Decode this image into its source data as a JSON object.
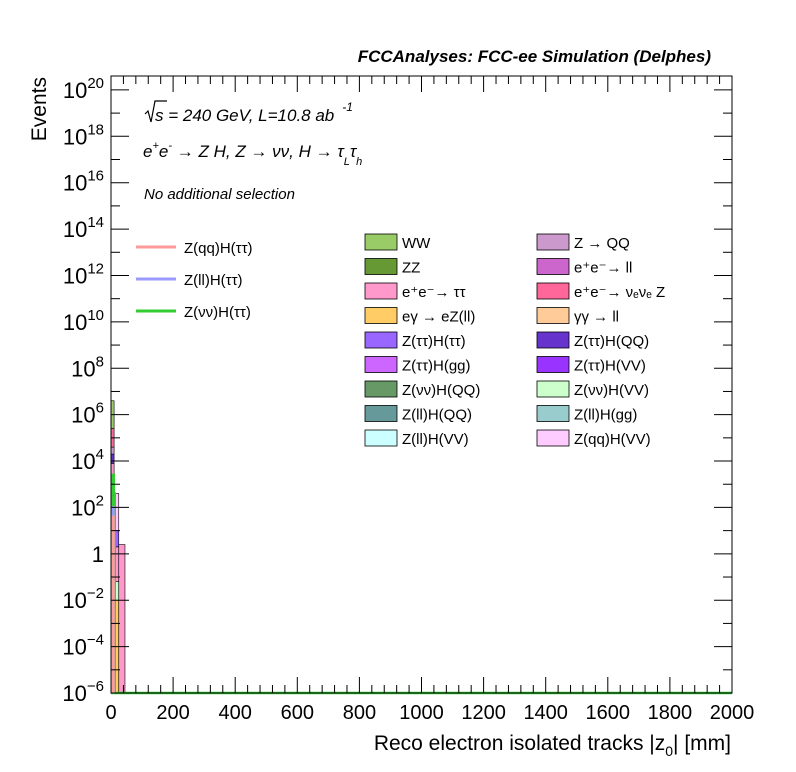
{
  "header": "FCCAnalyses: FCC-ee Simulation (Delphes)",
  "chart_data": {
    "type": "bar",
    "stacked": true,
    "log_y": true,
    "xlim": [
      0,
      2000
    ],
    "ylim_exp": [
      -6,
      20.6
    ],
    "grid": false,
    "legend_position": "top-right",
    "xlabel": "Reco electron isolated tracks |z",
    "xlabel_sub": "0",
    "xlabel_tail": "| [mm]",
    "ylabel": "Events",
    "x_ticks": [
      "0",
      "200",
      "400",
      "600",
      "800",
      "1000",
      "1200",
      "1400",
      "1600",
      "1800",
      "2000"
    ],
    "x_tick_values": [
      0,
      200,
      400,
      600,
      800,
      1000,
      1200,
      1400,
      1600,
      1800,
      2000
    ],
    "y_tick_exponents": [
      -6,
      -4,
      -2,
      0,
      2,
      4,
      6,
      8,
      10,
      12,
      14,
      16,
      18,
      20
    ],
    "y_tick_base": "10",
    "y_tick_one": "1",
    "annotations": {
      "energy_prefix": "s",
      "energy_rest": " = 240 GeV, L=10.8 ab",
      "energy_exp": "-1",
      "process": [
        "e",
        "+",
        "e",
        "-",
        " → Z H, Z  → νν, H  → τ",
        "L",
        "τ",
        "h"
      ],
      "selection": "No additional selection"
    },
    "signal_series": [
      {
        "name": "Z(qq)H(ττ)",
        "color": "#ff9a9a"
      },
      {
        "name": "Z(ll)H(ττ)",
        "color": "#9a9aff"
      },
      {
        "name": "Z(νν)H(ττ)",
        "color": "#33cc33"
      }
    ],
    "background_series": [
      {
        "name": "WW",
        "color": "#99cc66"
      },
      {
        "name": "Z → QQ",
        "color": "#cc99cc"
      },
      {
        "name": "ZZ",
        "color": "#669933"
      },
      {
        "name": "e⁺e⁻→ ll",
        "color": "#cc66cc"
      },
      {
        "name": "e⁺e⁻→ ττ",
        "color": "#ff99cc"
      },
      {
        "name": "e⁺e⁻→ νₑνₑ Z",
        "color": "#ff6699"
      },
      {
        "name": "eγ → eZ(ll)",
        "color": "#ffcc66"
      },
      {
        "name": "γγ → ll",
        "color": "#ffcc99"
      },
      {
        "name": "Z(ττ)H(ττ)",
        "color": "#9966ff"
      },
      {
        "name": "Z(ττ)H(QQ)",
        "color": "#6633cc"
      },
      {
        "name": "Z(ττ)H(gg)",
        "color": "#cc66ff"
      },
      {
        "name": "Z(ττ)H(VV)",
        "color": "#9933ff"
      },
      {
        "name": "Z(νν)H(QQ)",
        "color": "#669966"
      },
      {
        "name": "Z(νν)H(VV)",
        "color": "#ccffcc"
      },
      {
        "name": "Z(ll)H(QQ)",
        "color": "#669999"
      },
      {
        "name": "Z(ll)H(gg)",
        "color": "#99cccc"
      },
      {
        "name": "Z(ll)H(VV)",
        "color": "#ccffff"
      },
      {
        "name": "Z(qq)H(VV)",
        "color": "#ffccff"
      }
    ],
    "bins": [
      {
        "x0": 0,
        "x1": 10,
        "segments": [
          {
            "color": "#99cc66",
            "lo": -6,
            "hi": -0.3
          },
          {
            "color": "#ffcc66",
            "lo": -0.3,
            "hi": 0.5
          },
          {
            "color": "#ccffff",
            "lo": 0.5,
            "hi": 1.0
          },
          {
            "color": "#9966ff",
            "lo": 1.0,
            "hi": 1.5
          },
          {
            "color": "#669966",
            "lo": 1.5,
            "hi": 2.0
          },
          {
            "color": "#cc66ff",
            "lo": 2.0,
            "hi": 2.5
          },
          {
            "color": "#669933",
            "lo": 2.5,
            "hi": 3.3
          },
          {
            "color": "#ff99cc",
            "lo": 3.3,
            "hi": 3.9
          },
          {
            "color": "#6633cc",
            "lo": 3.9,
            "hi": 4.3
          },
          {
            "color": "#cc99cc",
            "lo": 4.3,
            "hi": 4.6
          },
          {
            "color": "#ff6699",
            "lo": 4.6,
            "hi": 5.4
          },
          {
            "color": "#99cc66",
            "lo": 5.4,
            "hi": 6.6
          }
        ]
      },
      {
        "x0": 10,
        "x1": 25,
        "segments": [
          {
            "color": "#ffcc66",
            "lo": -6,
            "hi": -2.0
          },
          {
            "color": "#ccffcc",
            "lo": -2.0,
            "hi": -1.2
          },
          {
            "color": "#ff99cc",
            "lo": -1.2,
            "hi": 0.3
          },
          {
            "color": "#9966ff",
            "lo": 0.3,
            "hi": 1.0
          },
          {
            "color": "#ffccff",
            "lo": 1.0,
            "hi": 2.6
          }
        ]
      },
      {
        "x0": 25,
        "x1": 45,
        "segments": [
          {
            "color": "#ff99cc",
            "lo": -6,
            "hi": 0.4
          }
        ]
      }
    ],
    "signal_lines": [
      {
        "color": "#33cc33",
        "points": [
          [
            0,
            -6
          ],
          [
            3,
            -6
          ],
          [
            3,
            3.4
          ],
          [
            9,
            3.4
          ],
          [
            9,
            2.6
          ],
          [
            12,
            2.6
          ],
          [
            12,
            -6
          ],
          [
            2000,
            -6
          ]
        ]
      },
      {
        "color": "#9a9aff",
        "points": [
          [
            3,
            -6
          ],
          [
            3,
            2.0
          ],
          [
            8,
            2.0
          ],
          [
            8,
            -6
          ]
        ]
      },
      {
        "color": "#ff9a9a",
        "points": [
          [
            4,
            -6
          ],
          [
            4,
            1.6
          ],
          [
            8,
            1.6
          ],
          [
            8,
            -6
          ]
        ]
      }
    ]
  }
}
